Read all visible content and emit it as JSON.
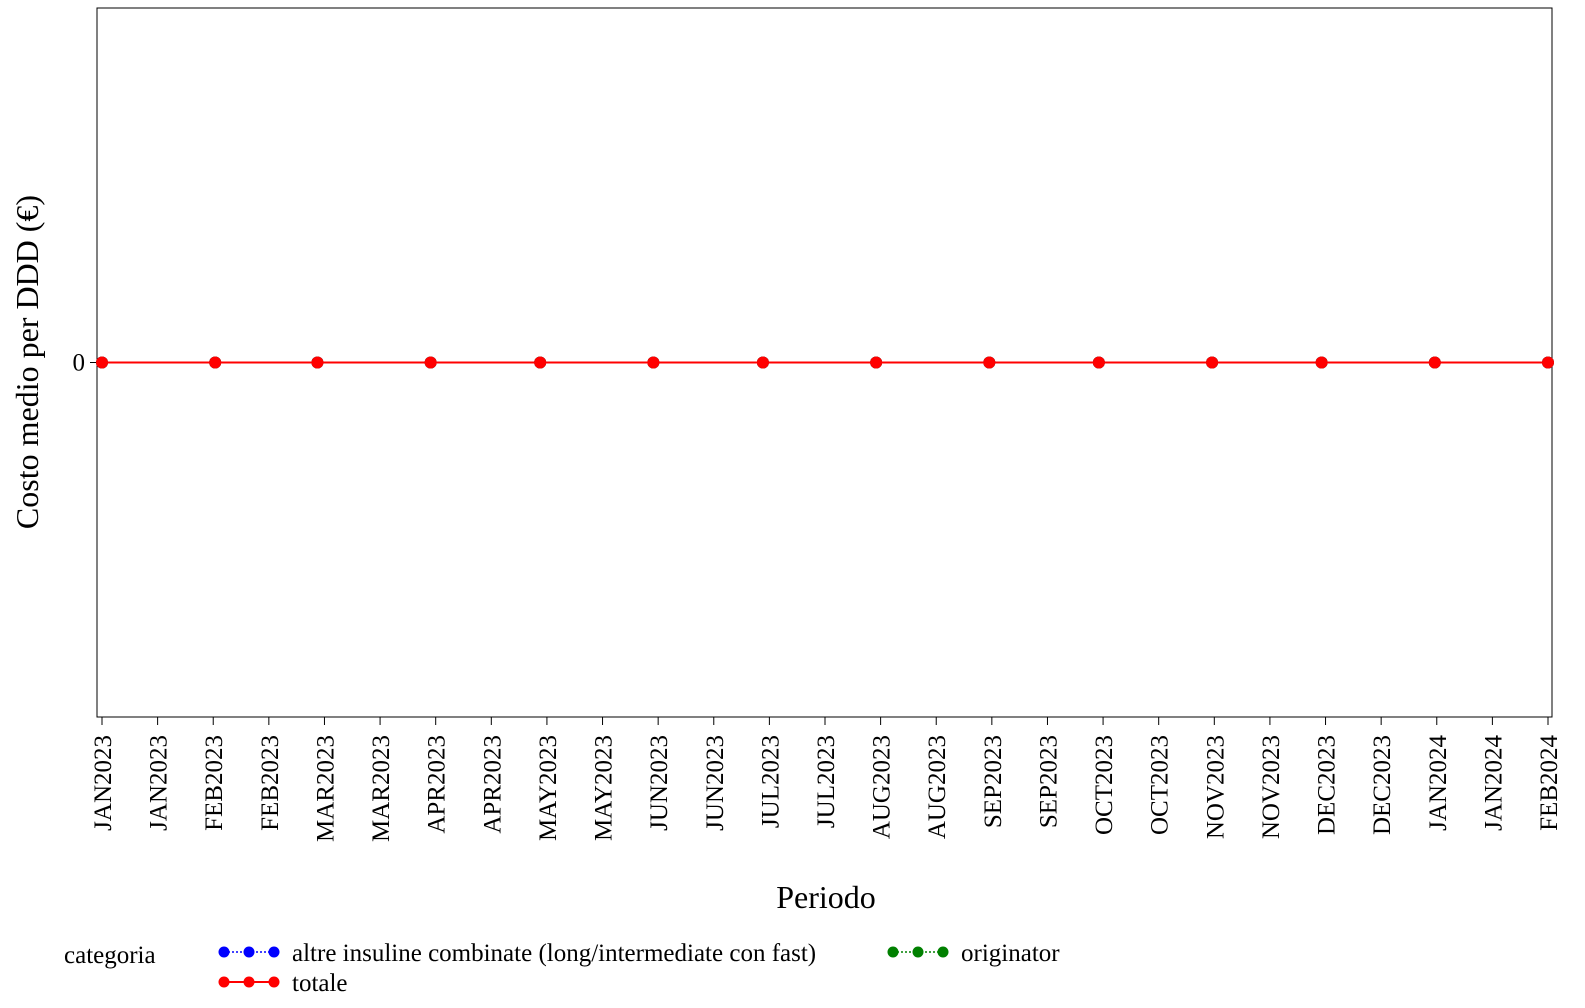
{
  "chart_data": {
    "type": "line",
    "xlabel": "Periodo",
    "ylabel": "Costo medio per DDD (€)",
    "yticks": [
      "0"
    ],
    "x_ticks": [
      "JAN2023",
      "JAN2023",
      "FEB2023",
      "FEB2023",
      "MAR2023",
      "MAR2023",
      "APR2023",
      "APR2023",
      "MAY2023",
      "MAY2023",
      "JUN2023",
      "JUN2023",
      "JUL2023",
      "JUL2023",
      "AUG2023",
      "AUG2023",
      "SEP2023",
      "SEP2023",
      "OCT2023",
      "OCT2023",
      "NOV2023",
      "NOV2023",
      "DEC2023",
      "DEC2023",
      "JAN2024",
      "JAN2024",
      "FEB2024"
    ],
    "x": [
      "2023-01-01",
      "2023-02-01",
      "2023-03-01",
      "2023-04-01",
      "2023-05-01",
      "2023-06-01",
      "2023-07-01",
      "2023-08-01",
      "2023-09-01",
      "2023-10-01",
      "2023-11-01",
      "2023-12-01",
      "2024-01-01",
      "2024-02-01"
    ],
    "ylim": [
      -1,
      1
    ],
    "grid": false,
    "series": [
      {
        "name": "altre insuline combinate (long/intermediate con fast)",
        "color": "#0000ff",
        "line_style": "dotted",
        "values": [
          0,
          0,
          0,
          0,
          0,
          0,
          0,
          0,
          0,
          0,
          0,
          0,
          0,
          0
        ]
      },
      {
        "name": "originator",
        "color": "#008000",
        "line_style": "dotted",
        "values": [
          0,
          0,
          0,
          0,
          0,
          0,
          0,
          0,
          0,
          0,
          0,
          0,
          0,
          0
        ]
      },
      {
        "name": "totale",
        "color": "#ff0000",
        "line_style": "solid",
        "values": [
          0,
          0,
          0,
          0,
          0,
          0,
          0,
          0,
          0,
          0,
          0,
          0,
          0,
          0
        ]
      }
    ]
  },
  "legend": {
    "title": "categoria",
    "placement": "bottom",
    "items": [
      {
        "label": "altre insuline combinate (long/intermediate con fast)",
        "color": "#0000ff",
        "style": "dotted"
      },
      {
        "label": "originator",
        "color": "#008000",
        "style": "dotted"
      },
      {
        "label": "totale",
        "color": "#ff0000",
        "style": "solid"
      }
    ]
  }
}
